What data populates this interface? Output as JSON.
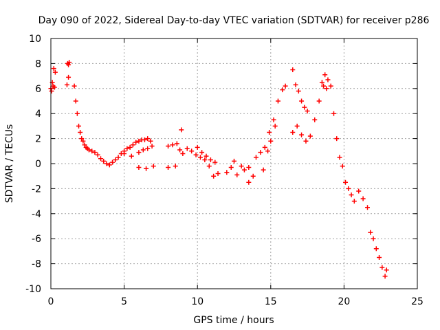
{
  "chart_data": {
    "type": "scatter",
    "title": "Day 090 of 2022, Sidereal Day-to-day VTEC variation (SDTVAR) for receiver p286",
    "xlabel": "GPS time / hours",
    "ylabel": "SDTVAR / TECUs",
    "xlim": [
      0,
      25
    ],
    "ylim": [
      -10,
      10
    ],
    "xticks": [
      0,
      5,
      10,
      15,
      20,
      25
    ],
    "yticks": [
      -10,
      -8,
      -6,
      -4,
      -2,
      0,
      2,
      4,
      6,
      8,
      10
    ],
    "xtick_labels": [
      "0",
      "5",
      "10",
      "15",
      "20",
      "25"
    ],
    "ytick_labels": [
      "-10",
      "-8",
      "-6",
      "-4",
      "-2",
      "0",
      "2",
      "4",
      "6",
      "8",
      "10"
    ],
    "grid": true,
    "marker": "+",
    "color": "#ff0000",
    "series": [
      {
        "name": "p286",
        "x": [
          0.0,
          0.1,
          0.2,
          0.3,
          0.05,
          0.15,
          0.25,
          1.1,
          1.2,
          1.15,
          1.2,
          1.25,
          1.6,
          1.7,
          1.8,
          1.9,
          2.0,
          2.1,
          2.2,
          2.3,
          2.4,
          2.5,
          2.6,
          2.8,
          3.0,
          3.2,
          3.4,
          3.6,
          3.8,
          4.0,
          4.2,
          4.4,
          4.6,
          4.8,
          5.0,
          5.2,
          5.4,
          5.6,
          5.8,
          6.0,
          6.2,
          6.4,
          6.6,
          6.8,
          5.0,
          5.5,
          6.0,
          6.5,
          7.0,
          6.0,
          6.3,
          6.6,
          6.9,
          8.0,
          8.3,
          8.6,
          8.9,
          8.8,
          8.0,
          8.5,
          9.0,
          9.3,
          9.6,
          9.9,
          10.2,
          10.5,
          10.8,
          11.1,
          11.4,
          10.0,
          10.3,
          10.6,
          10.9,
          11.2,
          12.0,
          12.5,
          12.3,
          12.7,
          13.0,
          13.2,
          13.5,
          13.8,
          13.5,
          14.0,
          14.3,
          14.6,
          14.9,
          15.2,
          15.5,
          15.8,
          16.0,
          14.5,
          14.8,
          15.0,
          15.3,
          16.5,
          16.7,
          16.9,
          17.1,
          17.3,
          17.5,
          16.5,
          16.8,
          17.1,
          17.4,
          17.7,
          18.0,
          18.3,
          18.6,
          18.8,
          18.5,
          18.7,
          18.9,
          19.1,
          19.3,
          19.5,
          19.7,
          19.9,
          20.1,
          20.3,
          20.5,
          20.7,
          21.0,
          21.3,
          21.6,
          21.8,
          22.0,
          22.2,
          22.4,
          22.6,
          22.8,
          22.9
        ],
        "y": [
          6.0,
          6.5,
          7.6,
          7.3,
          5.8,
          6.2,
          6.1,
          6.3,
          6.9,
          8.0,
          7.9,
          8.1,
          6.2,
          5.0,
          4.0,
          3.0,
          2.5,
          2.0,
          1.8,
          1.5,
          1.3,
          1.2,
          1.1,
          1.0,
          0.9,
          0.7,
          0.4,
          0.2,
          0.0,
          -0.1,
          0.1,
          0.3,
          0.5,
          0.8,
          1.0,
          1.2,
          1.3,
          1.5,
          1.7,
          1.8,
          1.9,
          1.9,
          2.0,
          1.8,
          0.8,
          0.6,
          -0.3,
          -0.4,
          -0.2,
          0.9,
          1.1,
          1.2,
          1.4,
          1.4,
          1.5,
          1.6,
          2.7,
          1.1,
          -0.3,
          -0.2,
          0.8,
          1.2,
          1.0,
          0.7,
          0.5,
          0.3,
          -0.2,
          -1.0,
          -0.8,
          1.3,
          0.9,
          0.6,
          0.3,
          0.1,
          -0.7,
          0.2,
          -0.3,
          -0.9,
          -0.2,
          -0.5,
          -1.5,
          -1.0,
          -0.3,
          0.5,
          0.9,
          1.3,
          2.5,
          3.5,
          5.0,
          5.9,
          6.2,
          -0.5,
          1.0,
          1.8,
          3.0,
          7.5,
          6.3,
          5.8,
          5.0,
          4.5,
          4.2,
          2.5,
          3.0,
          2.3,
          1.8,
          2.2,
          3.5,
          5.0,
          6.2,
          6.0,
          6.5,
          7.1,
          6.7,
          6.2,
          4.0,
          2.0,
          0.5,
          -0.2,
          -1.5,
          -2.0,
          -2.5,
          -3.0,
          -2.2,
          -2.8,
          -3.5,
          -5.5,
          -6.0,
          -6.8,
          -7.5,
          -8.3,
          -9.0,
          -8.5
        ]
      }
    ]
  }
}
